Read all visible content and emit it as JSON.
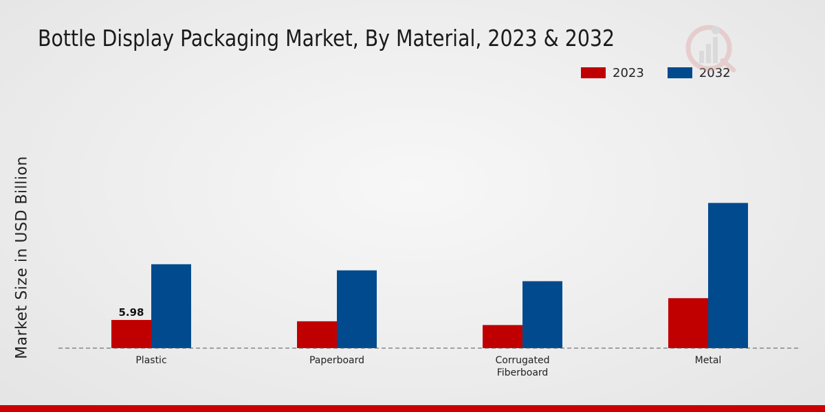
{
  "colors": {
    "2023": "#c00000",
    "2032": "#004a8d",
    "footer": "#cc0000"
  },
  "watermark_icon": "bar-chart-logo-icon",
  "chart_data": {
    "type": "bar",
    "title": "Bottle Display Packaging Market, By Material, 2023 & 2032",
    "xlabel": "",
    "ylabel": "Market Size in USD Billion",
    "categories": [
      "Plastic",
      "Paperboard",
      "Corrugated\nFiberboard",
      "Metal"
    ],
    "series": [
      {
        "name": "2023",
        "values": [
          5.98,
          5.7,
          4.9,
          10.6
        ]
      },
      {
        "name": "2032",
        "values": [
          17.8,
          16.5,
          14.2,
          30.8
        ]
      }
    ],
    "data_labels": [
      {
        "series": 0,
        "index": 0,
        "text": "5.98"
      }
    ],
    "ylim": [
      0,
      52
    ],
    "grid": false,
    "legend": "top-right"
  }
}
